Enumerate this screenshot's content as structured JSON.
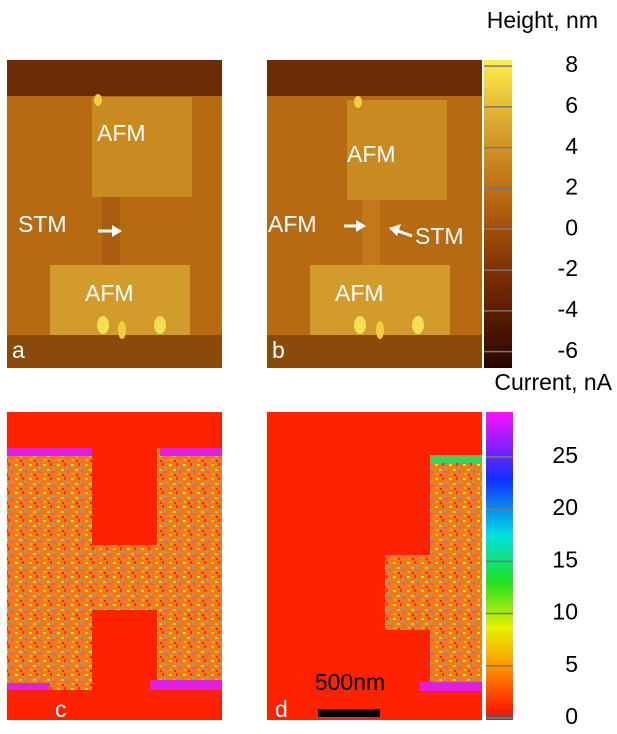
{
  "panels": [
    {
      "label": "a",
      "annotations": [
        "AFM",
        "STM",
        "AFM"
      ]
    },
    {
      "label": "b",
      "annotations": [
        "AFM",
        "AFM",
        "STM",
        "AFM"
      ]
    },
    {
      "label": "c"
    },
    {
      "label": "d",
      "scale_bar": "500nm"
    }
  ],
  "colorbars": [
    {
      "title": "Height, nm",
      "lim": [
        -6.8,
        8.3
      ],
      "ticks": [
        8,
        6,
        4,
        2,
        0,
        -2,
        -4,
        -6
      ]
    },
    {
      "title": "Current, nA",
      "lim": [
        -0.2,
        29.3
      ],
      "ticks": [
        25,
        20,
        15,
        10,
        5,
        0
      ]
    }
  ]
}
